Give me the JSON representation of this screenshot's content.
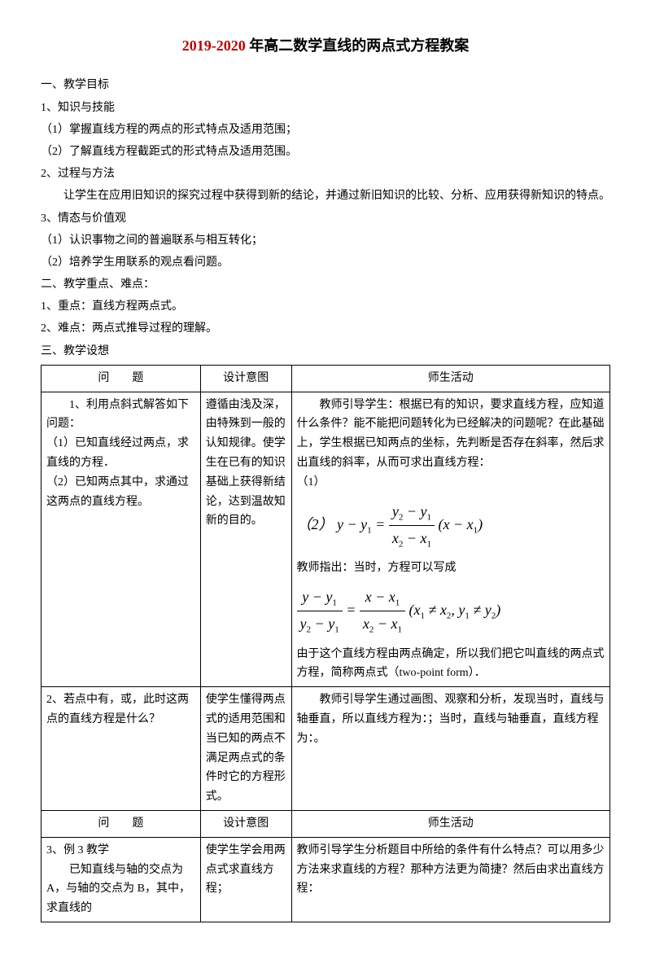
{
  "title_red": "2019-2020",
  "title_rest": " 年高二数学直线的两点式方程教案",
  "h1": "一、教学目标",
  "i1": "1、知识与技能",
  "i1a": "（1）掌握直线方程的两点的形式特点及适用范围；",
  "i1b": "（2）了解直线方程截距式的形式特点及适用范围。",
  "i2": "2、过程与方法",
  "i2a": "　　让学生在应用旧知识的探究过程中获得到新的结论，并通过新旧知识的比较、分析、应用获得新知识的特点。",
  "i3": "3、情态与价值观",
  "i3a": "（1）认识事物之间的普遍联系与相互转化；",
  "i3b": "（2）培养学生用联系的观点看问题。",
  "h2": "二、教学重点、难点：",
  "i4": "1、重点：直线方程两点式。",
  "i5": "2、难点：两点式推导过程的理解。",
  "h3": "三、教学设想",
  "th1": "问　　题",
  "th2": "设计意图",
  "th3": "师生活动",
  "r1c1a": "　　1、利用点斜式解答如下问题：",
  "r1c1b": "（1）已知直线经过两点，求直线的方程．",
  "r1c1c": "（2）已知两点其中，求通过这两点的直线方程。",
  "r1c2": "遵循由浅及深，由特殊到一般的认知规律。使学生在已有的知识基础上获得新结论，达到温故知新的目的。",
  "r1c3a": "　　教师引导学生：根据已有的知识，要求直线方程，应知道什么条件？能不能把问题转化为已经解决的问题呢？在此基础上，学生根据已知两点的坐标，先判断是否存在斜率，然后求出直线的斜率，从而可求出直线方程：",
  "r1c3b": "（1）",
  "r1c3c": "（2）",
  "r1c3d": "教师指出：当时，方程可以写成",
  "r1c3e": "由于这个直线方程由两点确定，所以我们把它叫直线的两点式方程，简称两点式（two-point form）．",
  "r2c1": "2、若点中有，或，此时这两点的直线方程是什么？",
  "r2c2": "使学生懂得两点式的适用范围和当已知的两点不满足两点式的条件时它的方程形式。",
  "r2c3": "　　教师引导学生通过画图、观察和分析，发现当时，直线与轴垂直，所以直线方程为：；当时，直线与轴垂直，直线方程为：。",
  "r3c1a": "3、例 3 教学",
  "r3c1b": "　　已知直线与轴的交点为 A，与轴的交点为 B，其中，求直线的",
  "r3c2": "使学生学会用两点式求直线方程；",
  "r3c3": "教师引导学生分析题目中所给的条件有什么特点？可以用多少方法来求直线的方程？那种方法更为简捷？然后由求出直线方程："
}
